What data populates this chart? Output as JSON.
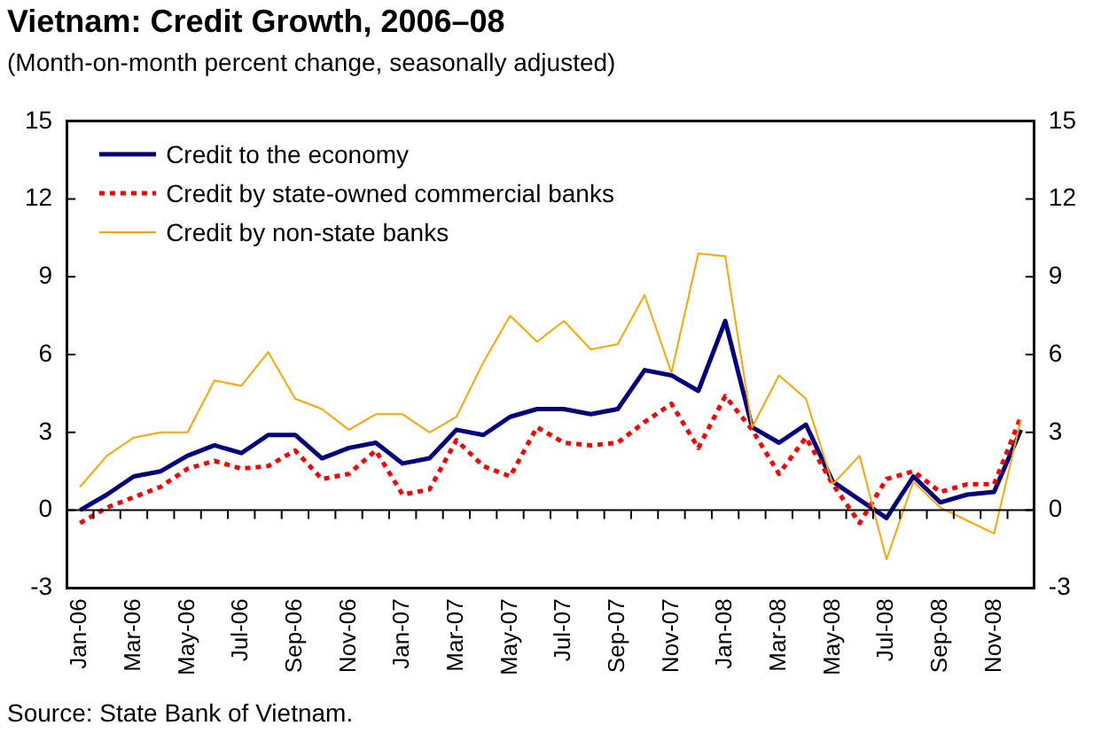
{
  "chart_data": {
    "type": "line",
    "title": "Vietnam: Credit Growth, 2006–08",
    "subtitle": "(Month-on-month percent change, seasonally adjusted)",
    "annotations": [
      "Source: State Bank of Vietnam."
    ],
    "categories": [
      "Jan-06",
      null,
      "Mar-06",
      null,
      "May-06",
      null,
      "Jul-06",
      null,
      "Sep-06",
      null,
      "Nov-06",
      null,
      "Jan-07",
      null,
      "Mar-07",
      null,
      "May-07",
      null,
      "Jul-07",
      null,
      "Sep-07",
      null,
      "Nov-07",
      null,
      "Jan-08",
      null,
      "Mar-08",
      null,
      "May-08",
      null,
      "Jul-08",
      null,
      "Sep-08",
      null,
      "Nov-08",
      null
    ],
    "series": [
      {
        "name": "Credit to the economy",
        "color": "#000080",
        "line_style": "solid",
        "values": [
          0,
          0.6,
          1.3,
          1.5,
          2.1,
          2.5,
          2.2,
          2.9,
          2.9,
          2.0,
          2.4,
          2.6,
          1.8,
          2.0,
          3.1,
          2.9,
          3.6,
          3.9,
          3.9,
          3.7,
          3.9,
          5.4,
          5.2,
          4.6,
          7.3,
          3.2,
          2.6,
          3.3,
          1.1,
          0.4,
          -0.3,
          1.3,
          0.3,
          0.6,
          0.7,
          3.1
        ]
      },
      {
        "name": "Credit by state-owned commercial banks",
        "color": "#ff0000",
        "line_style": "dashed",
        "values": [
          -0.5,
          0.1,
          0.5,
          0.9,
          1.6,
          1.9,
          1.6,
          1.7,
          2.3,
          1.2,
          1.4,
          2.3,
          0.6,
          0.8,
          2.7,
          1.7,
          1.3,
          3.2,
          2.6,
          2.5,
          2.6,
          3.4,
          4.1,
          2.4,
          4.4,
          3.1,
          1.4,
          2.8,
          1.0,
          -0.5,
          1.2,
          1.5,
          0.7,
          1.0,
          1.0,
          3.6
        ]
      },
      {
        "name": "Credit by non-state banks",
        "color": "#ffa500",
        "line_style": "solid",
        "values": [
          0.9,
          2.1,
          2.8,
          3.0,
          3.0,
          5.0,
          4.8,
          6.1,
          4.3,
          3.9,
          3.1,
          3.7,
          3.7,
          3.0,
          3.6,
          5.7,
          7.5,
          6.5,
          7.3,
          6.2,
          6.4,
          8.3,
          5.3,
          9.9,
          9.8,
          3.2,
          5.2,
          4.3,
          1.0,
          2.1,
          -1.9,
          1.1,
          0.1,
          -0.4,
          -0.9,
          3.5
        ]
      }
    ],
    "ylim": [
      -3,
      15
    ],
    "yticks": [
      -3,
      0,
      3,
      6,
      9,
      12,
      15
    ],
    "y2lim": [
      -3,
      15
    ],
    "y2ticks": [
      -3,
      0,
      3,
      6,
      9,
      12,
      15
    ],
    "ref_lines": [
      {
        "axis": "y",
        "value": 0,
        "color": "#000000"
      }
    ],
    "grid": false,
    "legend": "top left",
    "marker": "none"
  }
}
